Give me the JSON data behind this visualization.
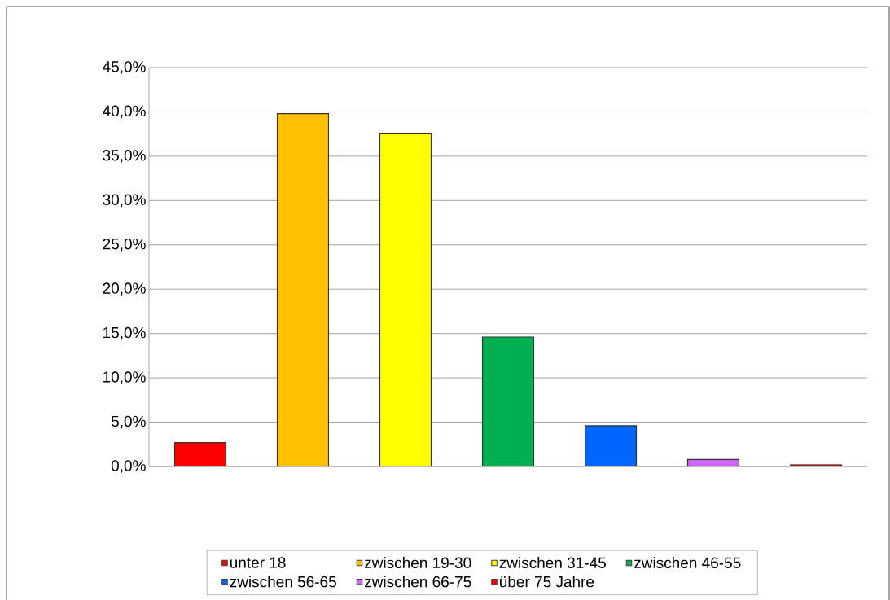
{
  "chart_data": {
    "type": "bar",
    "categories": [
      null,
      null,
      null,
      null,
      null,
      null,
      null
    ],
    "series": [
      {
        "name": "unter 18",
        "color": "#ff0000",
        "values": [
          2.7,
          null,
          null,
          null,
          null,
          null,
          null
        ]
      },
      {
        "name": "zwischen 19-30",
        "color": "#ffc000",
        "values": [
          null,
          39.8,
          null,
          null,
          null,
          null,
          null
        ]
      },
      {
        "name": "zwischen 31-45",
        "color": "#ffff00",
        "values": [
          null,
          null,
          37.6,
          null,
          null,
          null,
          null
        ]
      },
      {
        "name": "zwischen 46-55",
        "color": "#00b050",
        "values": [
          null,
          null,
          null,
          14.6,
          null,
          null,
          null
        ]
      },
      {
        "name": "zwischen 56-65",
        "color": "#0066ff",
        "values": [
          null,
          null,
          null,
          null,
          4.6,
          null,
          null
        ]
      },
      {
        "name": "zwischen 66-75",
        "color": "#cc66ff",
        "values": [
          null,
          null,
          null,
          null,
          null,
          0.8,
          null
        ]
      },
      {
        "name": "über 75 Jahre",
        "color": "#ff0000",
        "values": [
          null,
          null,
          null,
          null,
          null,
          null,
          0.2
        ]
      }
    ],
    "ylim": [
      0,
      45
    ],
    "yticks": [
      {
        "value": 0,
        "label": "0,0%"
      },
      {
        "value": 5,
        "label": "5,0%"
      },
      {
        "value": 10,
        "label": "10,0%"
      },
      {
        "value": 15,
        "label": "15,0%"
      },
      {
        "value": 20,
        "label": "20,0%"
      },
      {
        "value": 25,
        "label": "25,0%"
      },
      {
        "value": 30,
        "label": "30,0%"
      },
      {
        "value": 35,
        "label": "35,0%"
      },
      {
        "value": 40,
        "label": "40,0%"
      },
      {
        "value": 45,
        "label": "45,0%"
      }
    ],
    "grid": "y",
    "legend": "bottom",
    "tick_labels": "y"
  }
}
